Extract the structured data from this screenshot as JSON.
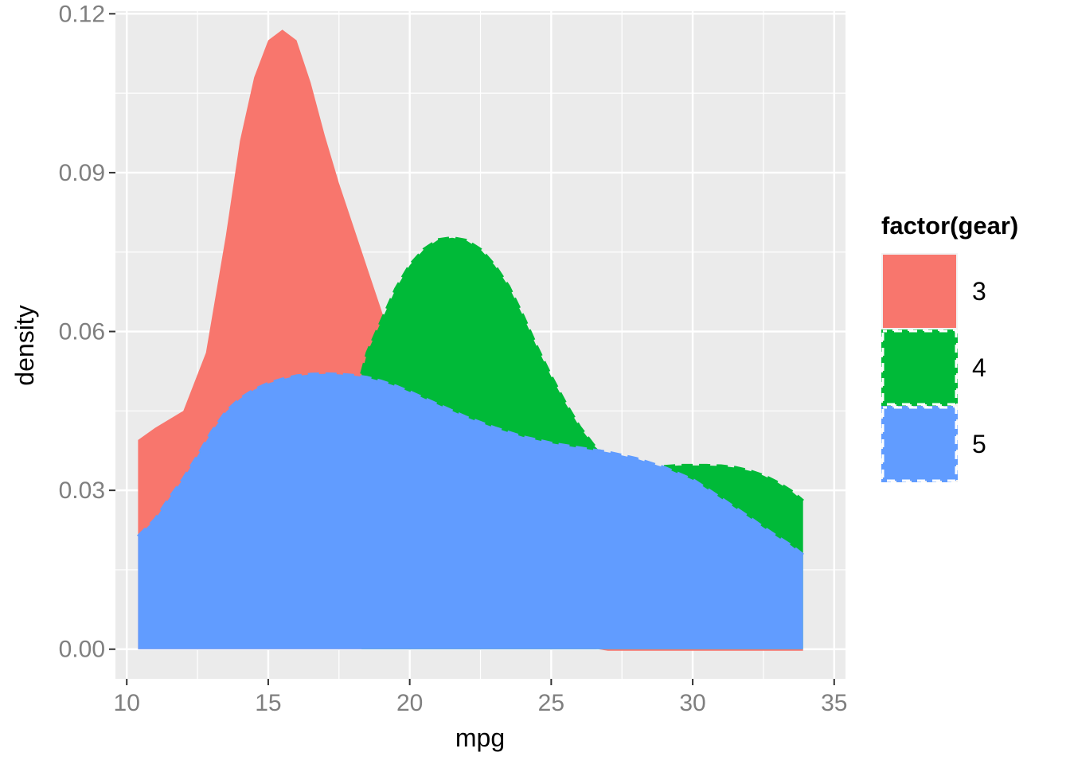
{
  "chart_data": {
    "type": "area",
    "xlabel": "mpg",
    "ylabel": "density",
    "xlim": [
      9.6,
      35.4
    ],
    "ylim": [
      -0.0056,
      0.1205
    ],
    "x_ticks": [
      10,
      15,
      20,
      25,
      30,
      35
    ],
    "x_tick_labels": [
      "10",
      "15",
      "20",
      "25",
      "30",
      "35"
    ],
    "y_ticks": [
      0,
      0.03,
      0.06,
      0.09,
      0.12
    ],
    "y_tick_labels": [
      "0.00",
      "0.03",
      "0.06",
      "0.09",
      "0.12"
    ],
    "grid": true,
    "panel_background": "#ebebeb",
    "legend": {
      "title": "factor(gear)",
      "placement": "right",
      "entries": [
        {
          "label": "3",
          "color": "#F8766D",
          "linetype": "solid"
        },
        {
          "label": "4",
          "color": "#00BA38",
          "linetype": "dashed"
        },
        {
          "label": "5",
          "color": "#619CFF",
          "linetype": "dashed"
        }
      ]
    },
    "series": [
      {
        "name": "3",
        "color": "#F8766D",
        "linetype": "solid",
        "x": [
          10.4,
          11.0,
          12.0,
          12.8,
          13.5,
          14.0,
          14.5,
          15.0,
          15.5,
          16.0,
          16.5,
          17.0,
          17.5,
          18.0,
          18.5,
          19.0,
          19.5,
          20.0,
          20.5,
          21.0,
          21.5,
          22.0,
          22.5,
          23.0,
          24.0,
          25.0,
          26.0,
          27.0,
          28.0,
          30.0,
          32.0,
          33.9
        ],
        "y": [
          0.0395,
          0.0418,
          0.045,
          0.056,
          0.078,
          0.096,
          0.108,
          0.115,
          0.117,
          0.115,
          0.107,
          0.097,
          0.088,
          0.08,
          0.072,
          0.064,
          0.055,
          0.046,
          0.038,
          0.031,
          0.025,
          0.02,
          0.016,
          0.012,
          0.0065,
          0.0025,
          0.0005,
          -0.0003,
          -0.0003,
          -0.0003,
          -0.0003,
          -0.0003
        ]
      },
      {
        "name": "4",
        "color": "#00BA38",
        "linetype": "dashed",
        "x": [
          18.3,
          18.5,
          19.0,
          19.5,
          20.0,
          20.5,
          21.0,
          21.5,
          22.0,
          22.5,
          23.0,
          23.5,
          24.0,
          24.5,
          25.0,
          25.5,
          26.0,
          26.5,
          27.0,
          27.5,
          28.0,
          28.5,
          29.0,
          29.5,
          30.0,
          30.5,
          31.0,
          31.5,
          32.0,
          32.5,
          33.0,
          33.5,
          33.9
        ],
        "y": [
          0.052,
          0.056,
          0.062,
          0.068,
          0.0725,
          0.0755,
          0.0773,
          0.0777,
          0.0772,
          0.0755,
          0.0725,
          0.0685,
          0.063,
          0.057,
          0.0515,
          0.0465,
          0.042,
          0.0385,
          0.036,
          0.0348,
          0.0342,
          0.0342,
          0.0345,
          0.0347,
          0.0347,
          0.0347,
          0.0346,
          0.0343,
          0.0337,
          0.0328,
          0.0315,
          0.0298,
          0.028
        ]
      },
      {
        "name": "5",
        "color": "#619CFF",
        "linetype": "dashed",
        "x": [
          10.4,
          11.0,
          11.5,
          12.0,
          12.5,
          13.0,
          13.5,
          14.0,
          14.5,
          15.0,
          15.5,
          16.0,
          16.5,
          17.0,
          17.5,
          18.0,
          18.5,
          19.0,
          19.5,
          20.0,
          21.0,
          22.0,
          23.0,
          24.0,
          25.0,
          26.0,
          27.0,
          28.0,
          29.0,
          30.0,
          30.5,
          31.0,
          31.5,
          32.0,
          32.5,
          33.0,
          33.5,
          33.9
        ],
        "y": [
          0.0213,
          0.0245,
          0.0285,
          0.0322,
          0.0365,
          0.041,
          0.0448,
          0.0473,
          0.049,
          0.0502,
          0.051,
          0.0516,
          0.0519,
          0.052,
          0.0519,
          0.0517,
          0.0513,
          0.0506,
          0.0497,
          0.0486,
          0.0462,
          0.0438,
          0.0418,
          0.0401,
          0.0389,
          0.038,
          0.0372,
          0.036,
          0.0343,
          0.032,
          0.0303,
          0.0285,
          0.0267,
          0.0249,
          0.023,
          0.0212,
          0.0195,
          0.0178
        ]
      }
    ]
  }
}
